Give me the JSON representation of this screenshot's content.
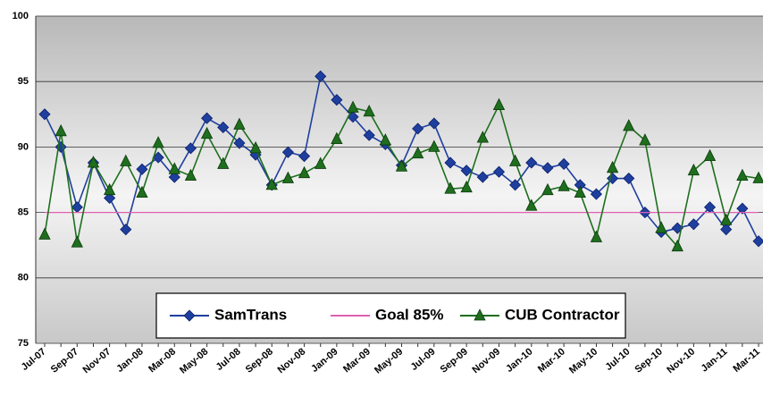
{
  "chart_data": {
    "type": "line",
    "categories": [
      "Jul-07",
      null,
      "Sep-07",
      null,
      "Nov-07",
      null,
      "Jan-08",
      null,
      "Mar-08",
      null,
      "May-08",
      null,
      "Jul-08",
      null,
      "Sep-08",
      null,
      "Nov-08",
      null,
      "Jan-09",
      null,
      "Mar-09",
      null,
      "May-09",
      null,
      "Jul-09",
      null,
      "Sep-09",
      null,
      "Nov-09",
      null,
      "Jan-10",
      null,
      "Mar-10",
      null,
      "May-10",
      null,
      "Jul-10",
      null,
      "Sep-10",
      null,
      "Nov-10",
      null,
      "Jan-11",
      null,
      "Mar-11"
    ],
    "series": [
      {
        "name": "SamTrans",
        "color": "#1f3f9e",
        "marker": "diamond",
        "values": [
          92.5,
          90.0,
          85.4,
          88.8,
          86.1,
          83.7,
          88.3,
          89.2,
          87.7,
          89.9,
          92.2,
          91.5,
          90.3,
          89.4,
          87.1,
          89.6,
          89.3,
          95.4,
          93.6,
          92.3,
          90.9,
          90.2,
          88.6,
          91.4,
          91.8,
          88.8,
          88.2,
          87.7,
          88.1,
          87.1,
          88.8,
          88.4,
          88.7,
          87.1,
          86.4,
          87.6,
          87.6,
          85.0,
          83.5,
          83.8,
          84.1,
          85.4,
          83.7,
          85.3,
          82.8
        ]
      },
      {
        "name": "Goal 85%",
        "color": "#e060b0",
        "marker": "none",
        "values": [
          85,
          85,
          85,
          85,
          85,
          85,
          85,
          85,
          85,
          85,
          85,
          85,
          85,
          85,
          85,
          85,
          85,
          85,
          85,
          85,
          85,
          85,
          85,
          85,
          85,
          85,
          85,
          85,
          85,
          85,
          85,
          85,
          85,
          85,
          85,
          85,
          85,
          85,
          85,
          85,
          85,
          85,
          85,
          85,
          85
        ]
      },
      {
        "name": "CUB Contractor",
        "color": "#1e6e1e",
        "marker": "triangle",
        "values": [
          83.3,
          91.2,
          82.7,
          88.8,
          86.7,
          88.9,
          86.5,
          90.3,
          88.3,
          87.8,
          91.0,
          88.7,
          91.7,
          89.9,
          87.1,
          87.6,
          88.0,
          88.7,
          90.6,
          93.0,
          92.7,
          90.5,
          88.5,
          89.5,
          90.0,
          86.8,
          86.9,
          90.7,
          93.2,
          88.9,
          85.5,
          86.7,
          87.0,
          86.5,
          83.1,
          88.4,
          91.6,
          90.5,
          83.8,
          82.4,
          88.2,
          89.3,
          84.4,
          87.8,
          87.6
        ]
      }
    ],
    "ylim": [
      75,
      100
    ],
    "yticks": [
      75,
      80,
      85,
      90,
      95,
      100
    ],
    "grid": true,
    "legend": "bottom"
  }
}
